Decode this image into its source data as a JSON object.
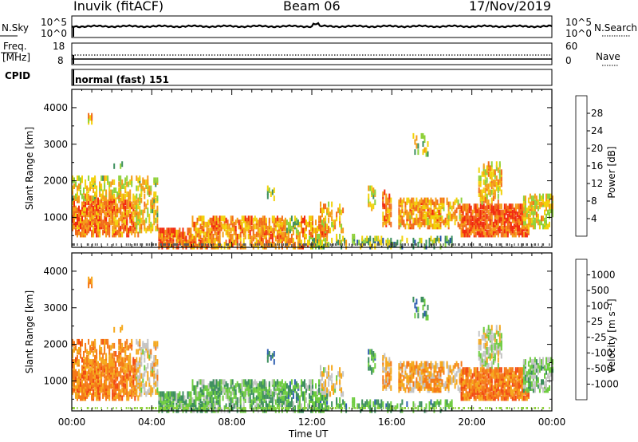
{
  "header": {
    "station": "Inuvik (fitACF)",
    "beam": "Beam 06",
    "date": "17/Nov/2019"
  },
  "noise_panel": {
    "left_label": "N.Sky",
    "left_ticks": [
      "10^5",
      "10^0"
    ],
    "right_ticks": [
      "10^5",
      "10^0"
    ],
    "right_label": "N.Search"
  },
  "freq_panel": {
    "left_label_1": "Freq.",
    "left_label_2": "[MHz]",
    "left_ticks": [
      "18",
      "8"
    ],
    "right_ticks": [
      "60",
      "0"
    ],
    "right_label": "Nave"
  },
  "cpid": {
    "label": "CPID",
    "value": "normal (fast) 151"
  },
  "colors": {
    "power": [
      "#0000ff",
      "#1f4fa8",
      "#3d8f5e",
      "#8fd13a",
      "#f2d20a",
      "#f59d17",
      "#f26b1a",
      "#f22a0f"
    ],
    "velocity": [
      "#ee1a10",
      "#f24a12",
      "#f57a18",
      "#f5a81c",
      "#c4c4c4",
      "#6ecc40",
      "#3d8f5e",
      "#2f5fb0",
      "#0a1fd6"
    ]
  },
  "chart_data": [
    {
      "type": "heatmap",
      "name": "power",
      "xlabel": "",
      "ylabel": "Slant Range [km]",
      "xlim": [
        "00:00",
        "24:00"
      ],
      "ylim": [
        180,
        4500
      ],
      "yticks": [
        "1000",
        "2000",
        "3000",
        "4000"
      ],
      "colorbar_label": "Power [dB]",
      "colorbar_ticks": [
        "4",
        "8",
        "12",
        "16",
        "20",
        "24",
        "28"
      ],
      "colorbar_range": [
        0,
        30
      ]
    },
    {
      "type": "heatmap",
      "name": "velocity",
      "xlabel": "Time UT",
      "ylabel": "Slant Range [km]",
      "xlim": [
        "00:00",
        "24:00"
      ],
      "ylim": [
        180,
        4500
      ],
      "xticks": [
        "00:00",
        "04:00",
        "08:00",
        "12:00",
        "16:00",
        "20:00",
        "00:00"
      ],
      "yticks": [
        "1000",
        "2000",
        "3000",
        "4000"
      ],
      "colorbar_label": "Velocity [m s⁻¹]",
      "colorbar_ticks": [
        "-1000",
        "-500",
        "-100",
        "-25",
        "25",
        "100",
        "500",
        "1000"
      ],
      "colorbar_range": [
        -1200,
        1200
      ]
    }
  ]
}
